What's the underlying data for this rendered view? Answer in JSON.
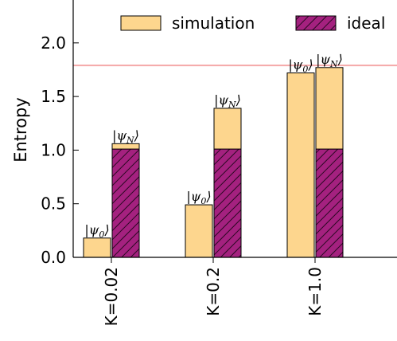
{
  "chart_data": {
    "type": "bar",
    "stacked": true,
    "title": "",
    "xlabel": "",
    "ylabel": "Entropy",
    "ylim": [
      0,
      2.4
    ],
    "yticks": [
      "0.0",
      "0.5",
      "1.0",
      "1.5",
      "2.0"
    ],
    "categories": [
      "K=0.02",
      "K=0.2",
      "K=1.0"
    ],
    "states": [
      "ψ0",
      "ψN"
    ],
    "series": [
      {
        "name": "simulation",
        "color": "#fdd68e",
        "values": {
          "K=0.02": [
            0.18,
            0.05
          ],
          "K=0.2": [
            0.49,
            0.38
          ],
          "K=1.0": [
            1.72,
            0.76
          ]
        }
      },
      {
        "name": "ideal",
        "color": "#a4217f",
        "hatch": true,
        "values": {
          "K=0.02": [
            0.0,
            1.01
          ],
          "K=0.2": [
            0.0,
            1.01
          ],
          "K=1.0": [
            0.0,
            1.01
          ]
        }
      }
    ],
    "bar_totals": {
      "K=0.02": [
        0.18,
        1.06
      ],
      "K=0.2": [
        0.49,
        1.39
      ],
      "K=1.0": [
        1.72,
        1.78
      ]
    },
    "reference_line": {
      "value": 1.79,
      "color": "#f4a9a9"
    },
    "grid": false,
    "legend": "top"
  }
}
